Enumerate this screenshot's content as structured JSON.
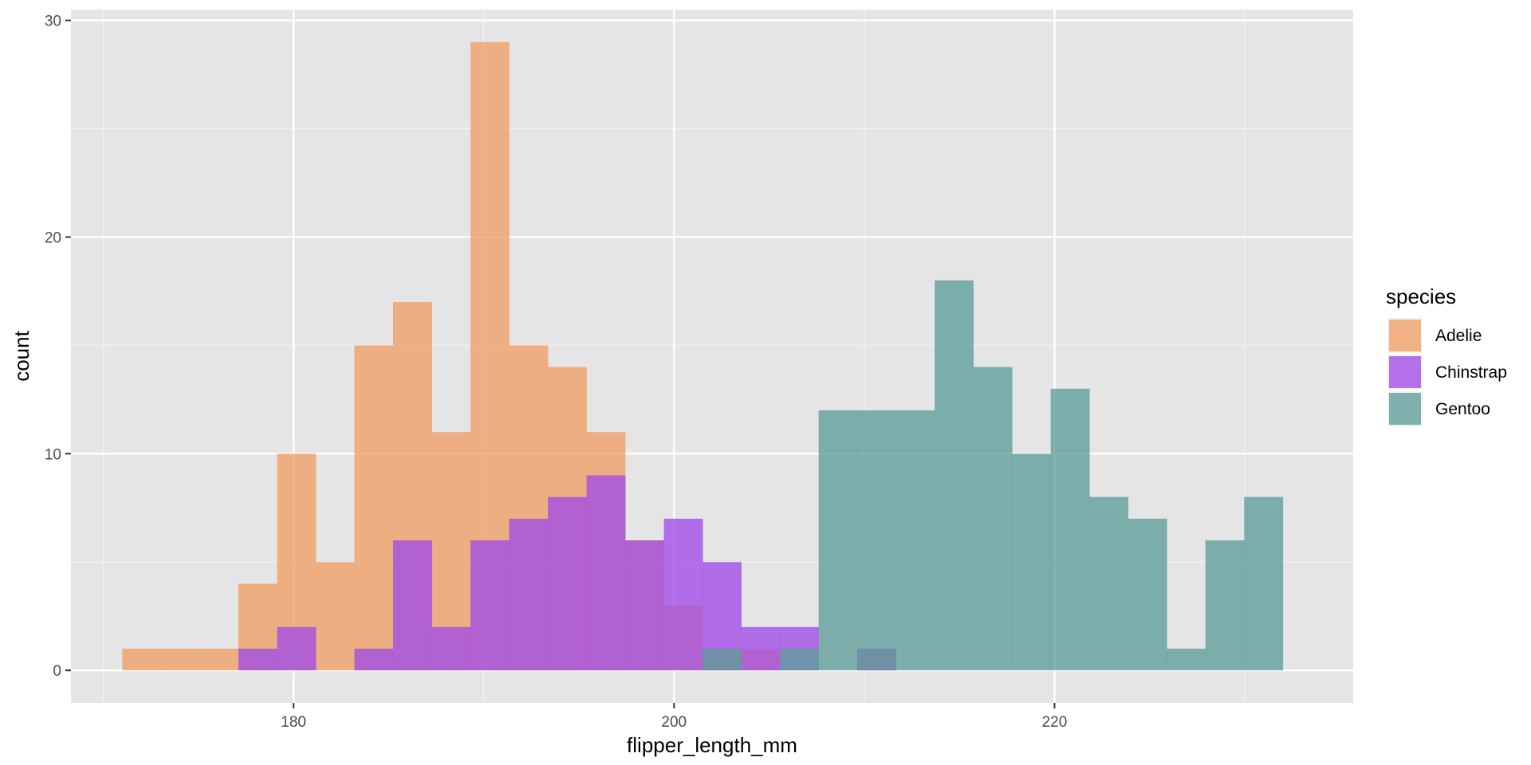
{
  "chart_data": {
    "type": "bar",
    "subtype": "overlapping-histogram",
    "title": "",
    "xlabel": "flipper_length_mm",
    "ylabel": "count",
    "xlim": [
      168.3,
      235.7
    ],
    "ylim": [
      -1.5,
      30.5
    ],
    "x_ticks": [
      180,
      200,
      220
    ],
    "y_ticks": [
      0,
      10,
      20,
      30
    ],
    "x_tick_labels": [
      "180",
      "200",
      "220"
    ],
    "y_tick_labels": [
      "0",
      "10",
      "20",
      "30"
    ],
    "grid": true,
    "legend": {
      "title": "species",
      "position": "right"
    },
    "bin_edges": [
      171.0,
      173.033,
      175.067,
      177.1,
      179.133,
      181.167,
      183.2,
      185.233,
      187.267,
      189.3,
      191.333,
      193.367,
      195.4,
      197.433,
      199.467,
      201.5,
      203.533,
      205.567,
      207.6,
      209.633,
      211.667,
      213.7,
      215.733,
      217.767,
      219.8,
      221.833,
      223.867,
      225.9,
      227.933,
      229.967,
      232.0
    ],
    "series": [
      {
        "name": "Adelie",
        "color": "#F0A066",
        "values": [
          1,
          1,
          1,
          4,
          10,
          5,
          15,
          17,
          11,
          29,
          15,
          14,
          11,
          6,
          3,
          1,
          1,
          0,
          0,
          1,
          0,
          0,
          0,
          0,
          0,
          0,
          0,
          0,
          0,
          0
        ]
      },
      {
        "name": "Chinstrap",
        "color": "#A24BE8",
        "values": [
          0,
          0,
          0,
          1,
          2,
          0,
          1,
          6,
          2,
          6,
          7,
          8,
          9,
          6,
          7,
          5,
          2,
          2,
          0,
          1,
          0,
          0,
          0,
          0,
          0,
          0,
          0,
          0,
          0,
          0
        ]
      },
      {
        "name": "Gentoo",
        "color": "#5E9E9A",
        "values": [
          0,
          0,
          0,
          0,
          0,
          0,
          0,
          0,
          0,
          0,
          0,
          0,
          0,
          0,
          0,
          1,
          0,
          1,
          12,
          12,
          12,
          18,
          14,
          10,
          13,
          8,
          7,
          1,
          6,
          8
        ]
      }
    ]
  }
}
